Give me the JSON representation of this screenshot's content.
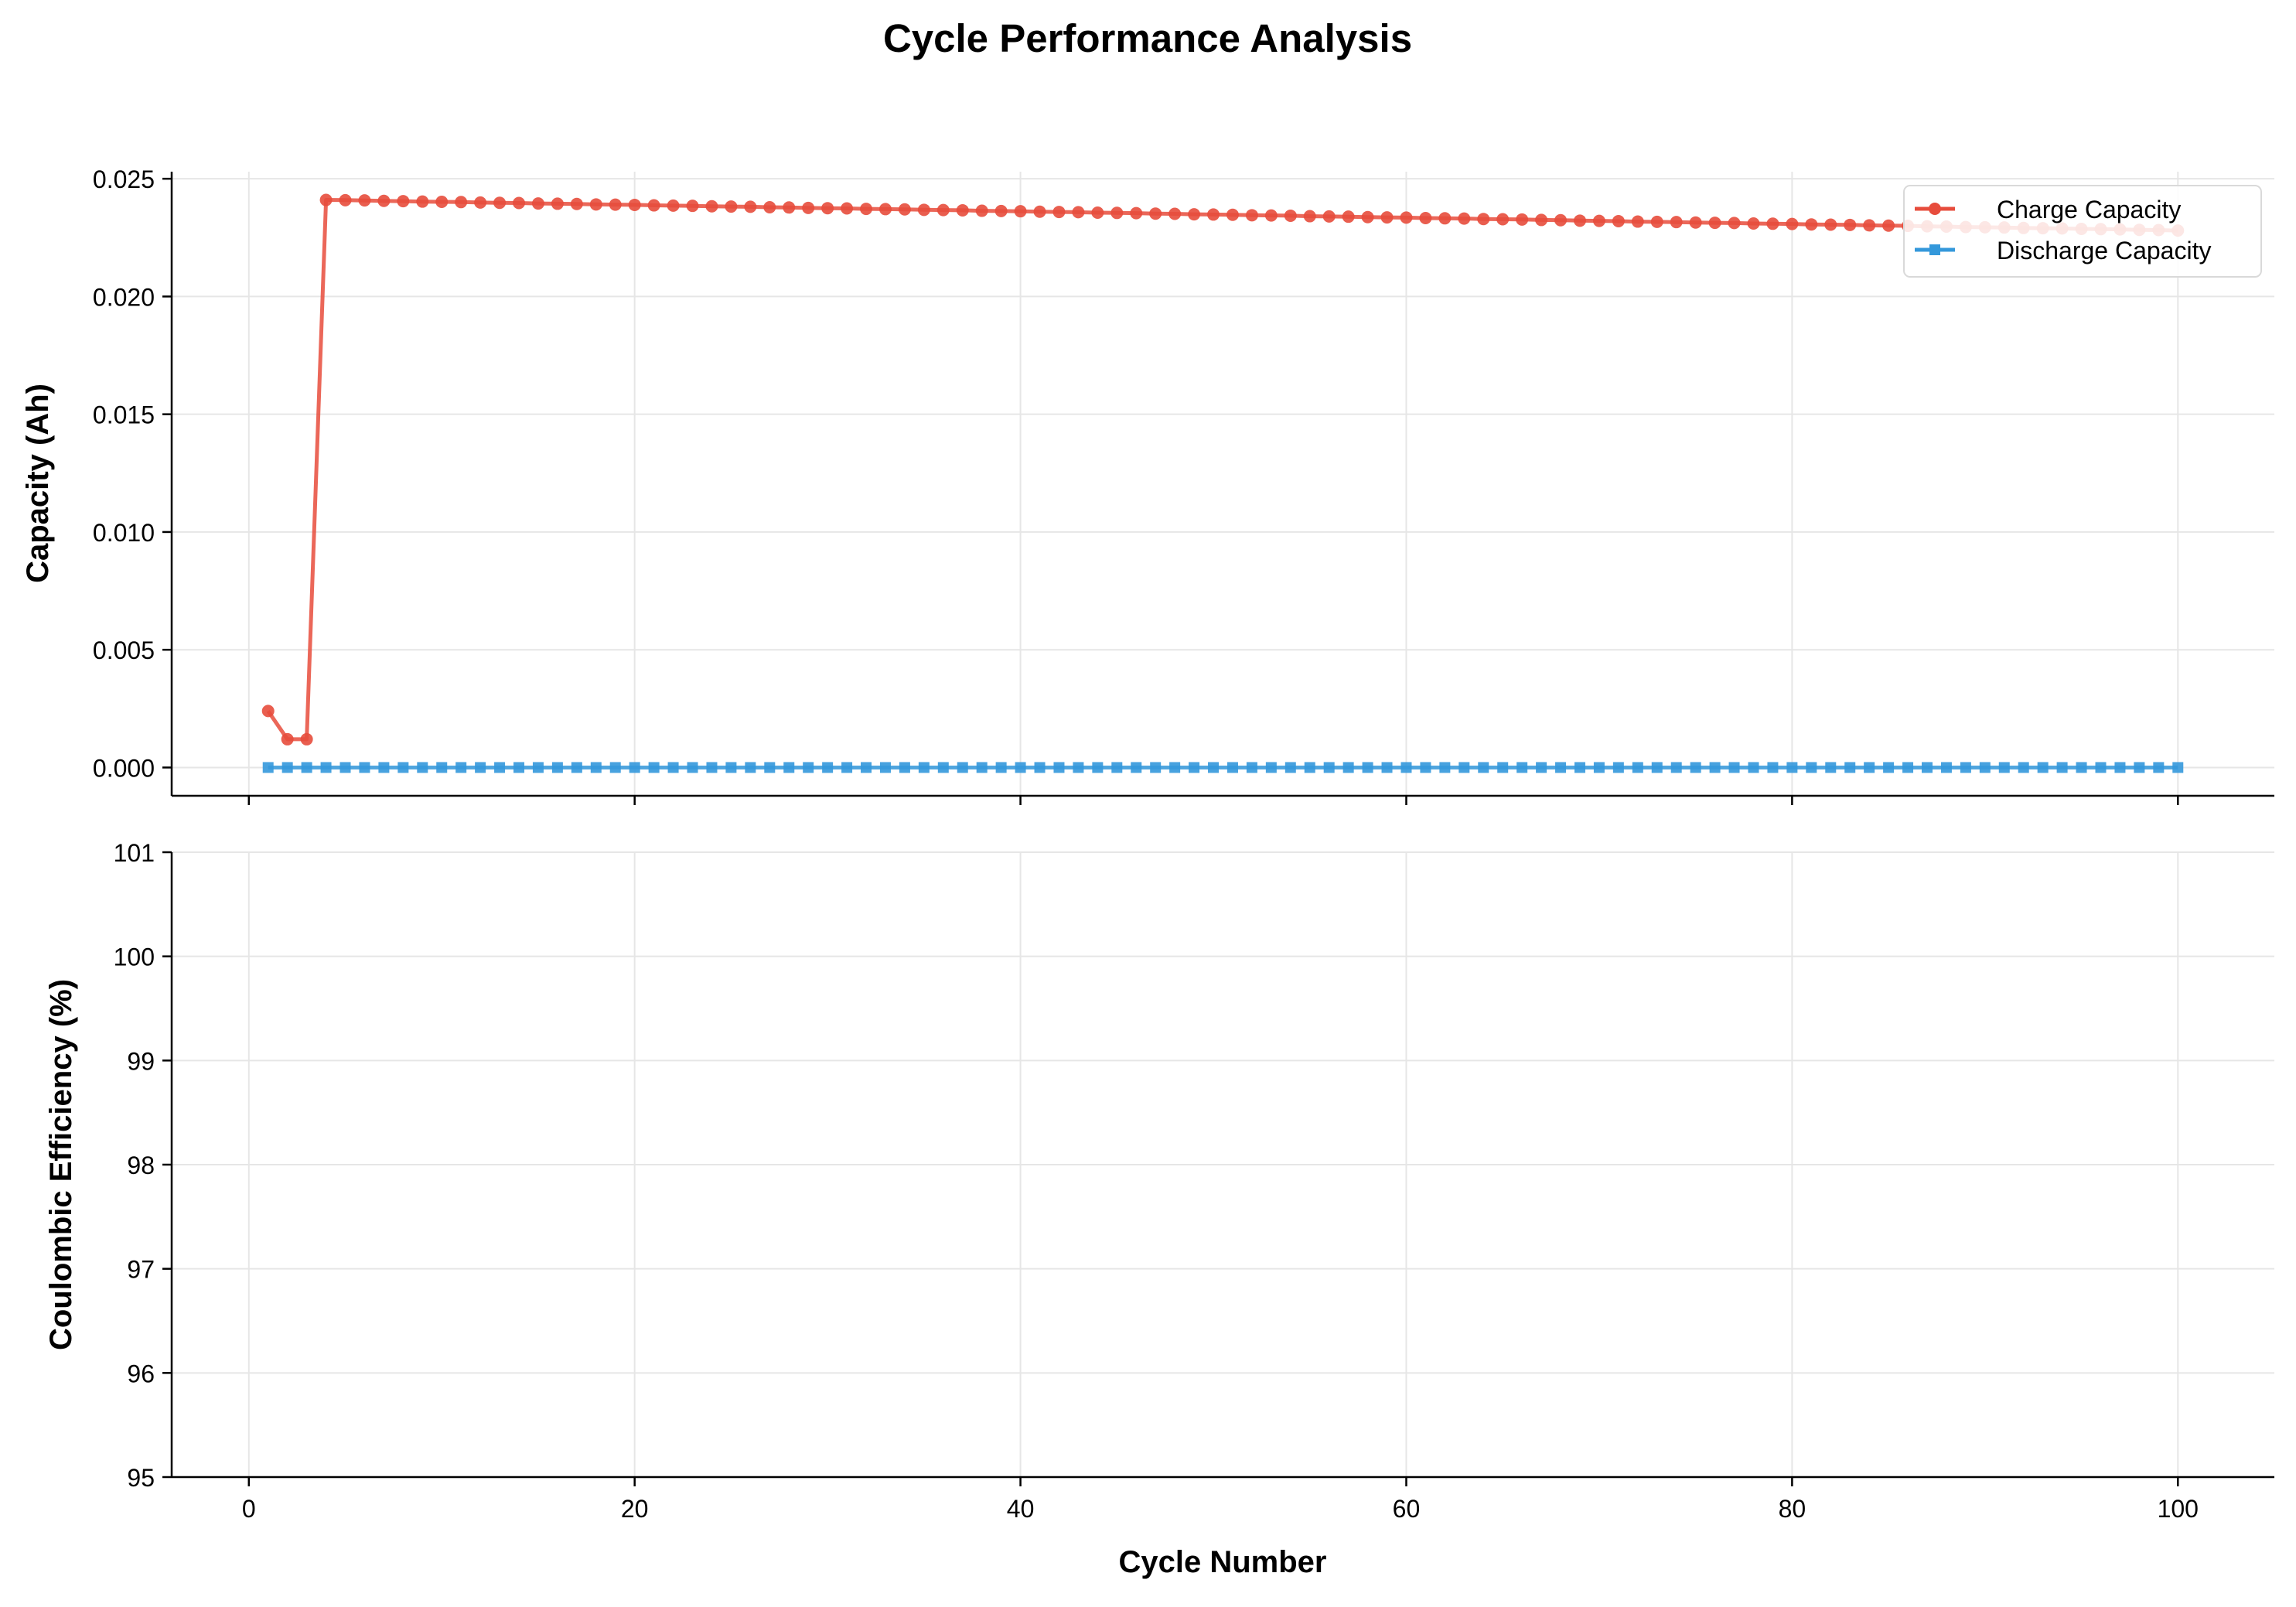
{
  "figure": {
    "title": "Cycle Performance Analysis"
  },
  "chart_data": [
    {
      "type": "line",
      "ylabel": "Capacity (Ah)",
      "xlabel": "",
      "xlim": [
        -4,
        105
      ],
      "ylim": [
        -0.0012,
        0.0253
      ],
      "x_ticks": [
        0,
        20,
        40,
        60,
        80,
        100
      ],
      "x_tick_labels_visible": false,
      "y_ticks": [
        0.0,
        0.005,
        0.01,
        0.015,
        0.02,
        0.025
      ],
      "y_tick_labels": [
        "0.000",
        "0.005",
        "0.010",
        "0.015",
        "0.020",
        "0.025"
      ],
      "grid": true,
      "legend": "top-right",
      "x": [
        1,
        2,
        3,
        4,
        5,
        6,
        7,
        8,
        9,
        10,
        11,
        12,
        13,
        14,
        15,
        16,
        17,
        18,
        19,
        20,
        21,
        22,
        23,
        24,
        25,
        26,
        27,
        28,
        29,
        30,
        31,
        32,
        33,
        34,
        35,
        36,
        37,
        38,
        39,
        40,
        41,
        42,
        43,
        44,
        45,
        46,
        47,
        48,
        49,
        50,
        51,
        52,
        53,
        54,
        55,
        56,
        57,
        58,
        59,
        60,
        61,
        62,
        63,
        64,
        65,
        66,
        67,
        68,
        69,
        70,
        71,
        72,
        73,
        74,
        75,
        76,
        77,
        78,
        79,
        80,
        81,
        82,
        83,
        84,
        85,
        86,
        87,
        88,
        89,
        90,
        91,
        92,
        93,
        94,
        95,
        96,
        97,
        98,
        99,
        100
      ],
      "series": [
        {
          "name": "Charge Capacity",
          "color": "#e74c3c",
          "marker": "circle",
          "values": [
            0.0024,
            0.0012,
            0.0012,
            0.0241,
            0.02409,
            0.02408,
            0.02406,
            0.02405,
            0.02403,
            0.02402,
            0.02401,
            0.02399,
            0.02398,
            0.02397,
            0.02395,
            0.02394,
            0.02393,
            0.02391,
            0.0239,
            0.02389,
            0.02387,
            0.02386,
            0.02385,
            0.02383,
            0.02382,
            0.02381,
            0.02379,
            0.02378,
            0.02376,
            0.02375,
            0.02374,
            0.02372,
            0.02371,
            0.0237,
            0.02368,
            0.02367,
            0.02366,
            0.02364,
            0.02363,
            0.02362,
            0.0236,
            0.02359,
            0.02358,
            0.02356,
            0.02355,
            0.02354,
            0.02352,
            0.02351,
            0.02349,
            0.02348,
            0.02347,
            0.02345,
            0.02344,
            0.02343,
            0.02341,
            0.0234,
            0.02339,
            0.02337,
            0.02336,
            0.02335,
            0.02333,
            0.02332,
            0.02331,
            0.02329,
            0.02328,
            0.02327,
            0.02325,
            0.02324,
            0.02322,
            0.02321,
            0.0232,
            0.02318,
            0.02317,
            0.02316,
            0.02314,
            0.02313,
            0.02312,
            0.0231,
            0.02309,
            0.02308,
            0.02306,
            0.02305,
            0.02304,
            0.02302,
            0.02301,
            0.023,
            0.02298,
            0.02297,
            0.02295,
            0.02294,
            0.02293,
            0.02291,
            0.0229,
            0.02289,
            0.02287,
            0.02286,
            0.02285,
            0.02283,
            0.02282,
            0.0228
          ]
        },
        {
          "name": "Discharge Capacity",
          "color": "#3498db",
          "marker": "square",
          "values": [
            0,
            0,
            0,
            0,
            0,
            0,
            0,
            0,
            0,
            0,
            0,
            0,
            0,
            0,
            0,
            0,
            0,
            0,
            0,
            0,
            0,
            0,
            0,
            0,
            0,
            0,
            0,
            0,
            0,
            0,
            0,
            0,
            0,
            0,
            0,
            0,
            0,
            0,
            0,
            0,
            0,
            0,
            0,
            0,
            0,
            0,
            0,
            0,
            0,
            0,
            0,
            0,
            0,
            0,
            0,
            0,
            0,
            0,
            0,
            0,
            0,
            0,
            0,
            0,
            0,
            0,
            0,
            0,
            0,
            0,
            0,
            0,
            0,
            0,
            0,
            0,
            0,
            0,
            0,
            0,
            0,
            0,
            0,
            0,
            0,
            0,
            0,
            0,
            0,
            0,
            0,
            0,
            0,
            0,
            0,
            0,
            0,
            0,
            0,
            0
          ]
        }
      ]
    },
    {
      "type": "line",
      "ylabel": "Coulombic Efficiency (%)",
      "xlabel": "Cycle Number",
      "xlim": [
        -4,
        105
      ],
      "ylim": [
        95,
        101
      ],
      "x_ticks": [
        0,
        20,
        40,
        60,
        80,
        100
      ],
      "x_tick_labels": [
        "0",
        "20",
        "40",
        "60",
        "80",
        "100"
      ],
      "y_ticks": [
        95,
        96,
        97,
        98,
        99,
        100,
        101
      ],
      "y_tick_labels": [
        "95",
        "96",
        "97",
        "98",
        "99",
        "100",
        "101"
      ],
      "grid": true,
      "series": []
    }
  ]
}
